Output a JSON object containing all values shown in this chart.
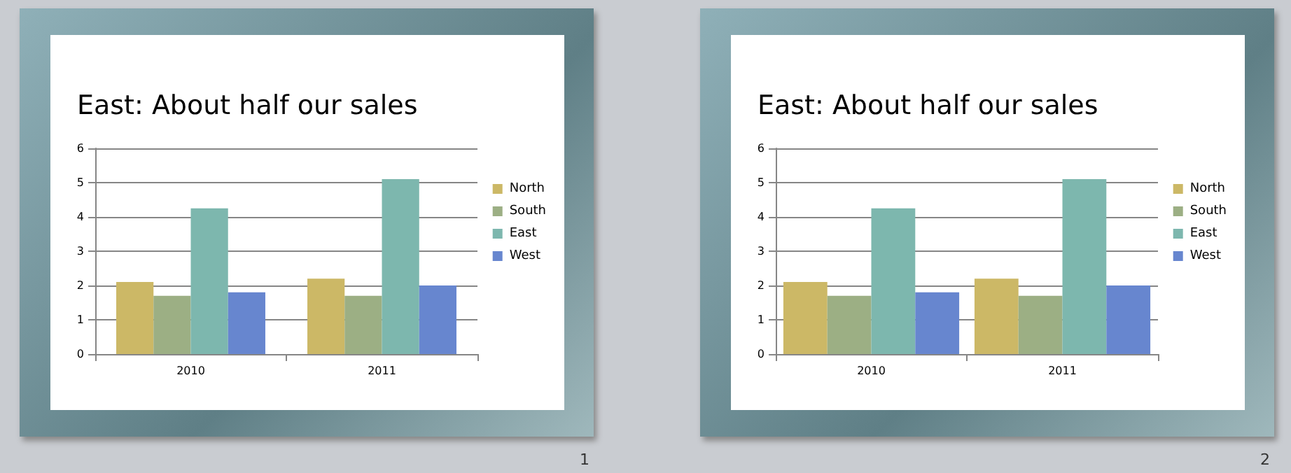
{
  "chart_data": [
    {
      "type": "bar",
      "title": "East: About half our sales",
      "categories": [
        "2010",
        "2011"
      ],
      "series": [
        {
          "name": "North",
          "color": "#ccb866",
          "values": [
            2.1,
            2.2
          ]
        },
        {
          "name": "South",
          "color": "#9caf84",
          "values": [
            1.7,
            1.7
          ]
        },
        {
          "name": "East",
          "color": "#7db7ae",
          "values": [
            4.25,
            5.1
          ]
        },
        {
          "name": "West",
          "color": "#6786cf",
          "values": [
            1.8,
            2.0
          ]
        }
      ],
      "ylim": [
        0,
        6
      ],
      "yticks": [
        0,
        1,
        2,
        3,
        4,
        5,
        6
      ],
      "grid": "y",
      "legend": "right",
      "annotations": [
        "1"
      ]
    },
    {
      "type": "bar",
      "title": "East: About half our sales",
      "categories": [
        "2010",
        "2011"
      ],
      "series": [
        {
          "name": "North",
          "color": "#ccb866",
          "values": [
            2.1,
            2.2
          ]
        },
        {
          "name": "South",
          "color": "#9caf84",
          "values": [
            1.7,
            1.7
          ]
        },
        {
          "name": "East",
          "color": "#7db7ae",
          "values": [
            4.25,
            5.1
          ]
        },
        {
          "name": "West",
          "color": "#6786cf",
          "values": [
            1.8,
            2.0
          ]
        }
      ],
      "ylim": [
        0,
        6
      ],
      "yticks": [
        0,
        1,
        2,
        3,
        4,
        5,
        6
      ],
      "grid": "y",
      "legend": "right",
      "annotations": [
        "2"
      ]
    }
  ]
}
